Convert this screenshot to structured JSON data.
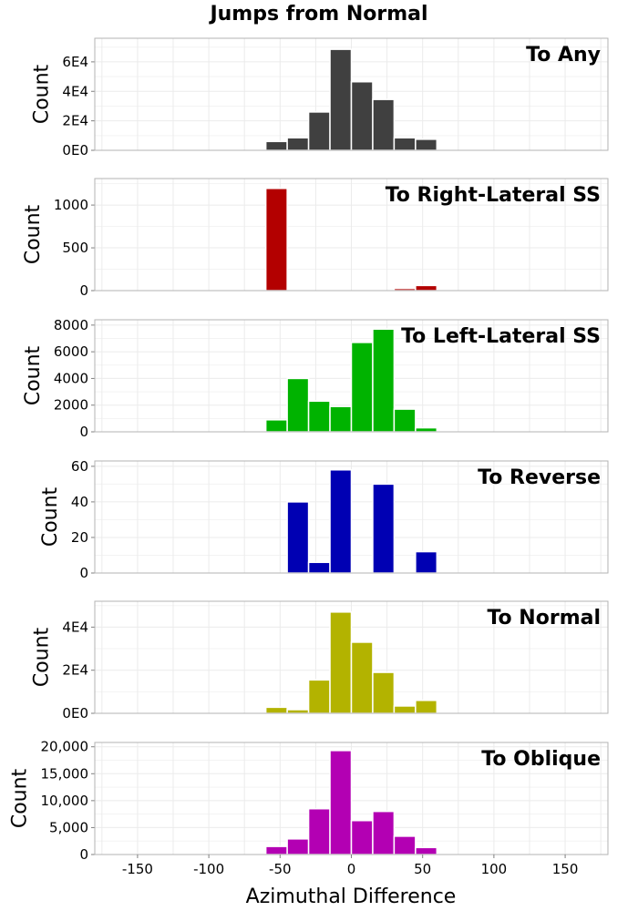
{
  "chart_data": {
    "type": "bar",
    "title": "Jumps from Normal",
    "xlabel": "Azimuthal Difference",
    "xlim": [
      -180,
      180
    ],
    "x_ticks": [
      -150,
      -100,
      -50,
      0,
      50,
      100,
      150
    ],
    "x_tick_labels": [
      "-150",
      "-100",
      "-50",
      "0",
      "50",
      "100",
      "150"
    ],
    "bin_width": 15,
    "bin_centers": [
      -52.5,
      -37.5,
      -22.5,
      -7.5,
      7.5,
      22.5,
      37.5,
      52.5
    ],
    "panels": [
      {
        "label": "To Any",
        "ylabel": "Count",
        "color": "#404040",
        "values": [
          6000,
          8500,
          26000,
          68500,
          46500,
          34500,
          8500,
          7500
        ],
        "ylim": [
          0,
          76000
        ],
        "y_ticks": [
          0,
          20000,
          40000,
          60000
        ],
        "y_tick_labels": [
          "0E0",
          "2E4",
          "4E4",
          "6E4"
        ]
      },
      {
        "label": "To Right-Lateral SS",
        "ylabel": "Count",
        "color": "#b30000",
        "values": [
          1195,
          0,
          0,
          0,
          0,
          0,
          25,
          60
        ],
        "ylim": [
          0,
          1310
        ],
        "y_ticks": [
          0,
          500,
          1000
        ],
        "y_tick_labels": [
          "0",
          "500",
          "1000"
        ]
      },
      {
        "label": "To Left-Lateral SS",
        "ylabel": "Count",
        "color": "#00b300",
        "values": [
          900,
          4000,
          2300,
          1900,
          6700,
          7700,
          1700,
          300
        ],
        "ylim": [
          0,
          8400
        ],
        "y_ticks": [
          0,
          2000,
          4000,
          6000,
          8000
        ],
        "y_tick_labels": [
          "0",
          "2000",
          "4000",
          "6000",
          "8000"
        ]
      },
      {
        "label": "To Reverse",
        "ylabel": "Count",
        "color": "#0000b3",
        "values": [
          0,
          40,
          6,
          58,
          0,
          50,
          0,
          12
        ],
        "ylim": [
          0,
          63
        ],
        "y_ticks": [
          0,
          20,
          40,
          60
        ],
        "y_tick_labels": [
          "0",
          "20",
          "40",
          "60"
        ]
      },
      {
        "label": "To Normal",
        "ylabel": "Count",
        "color": "#b3b300",
        "values": [
          2800,
          1700,
          15500,
          47000,
          33000,
          19000,
          3400,
          6000
        ],
        "ylim": [
          0,
          52000
        ],
        "y_ticks": [
          0,
          20000,
          40000
        ],
        "y_tick_labels": [
          "0E0",
          "2E4",
          "4E4"
        ]
      },
      {
        "label": "To Oblique",
        "ylabel": "Count",
        "color": "#b300b3",
        "values": [
          1500,
          2900,
          8500,
          19300,
          6300,
          8000,
          3400,
          1300
        ],
        "ylim": [
          0,
          20800
        ],
        "y_ticks": [
          0,
          5000,
          10000,
          15000,
          20000
        ],
        "y_tick_labels": [
          "0",
          "5,000",
          "10,000",
          "15,000",
          "20,000"
        ]
      }
    ]
  }
}
